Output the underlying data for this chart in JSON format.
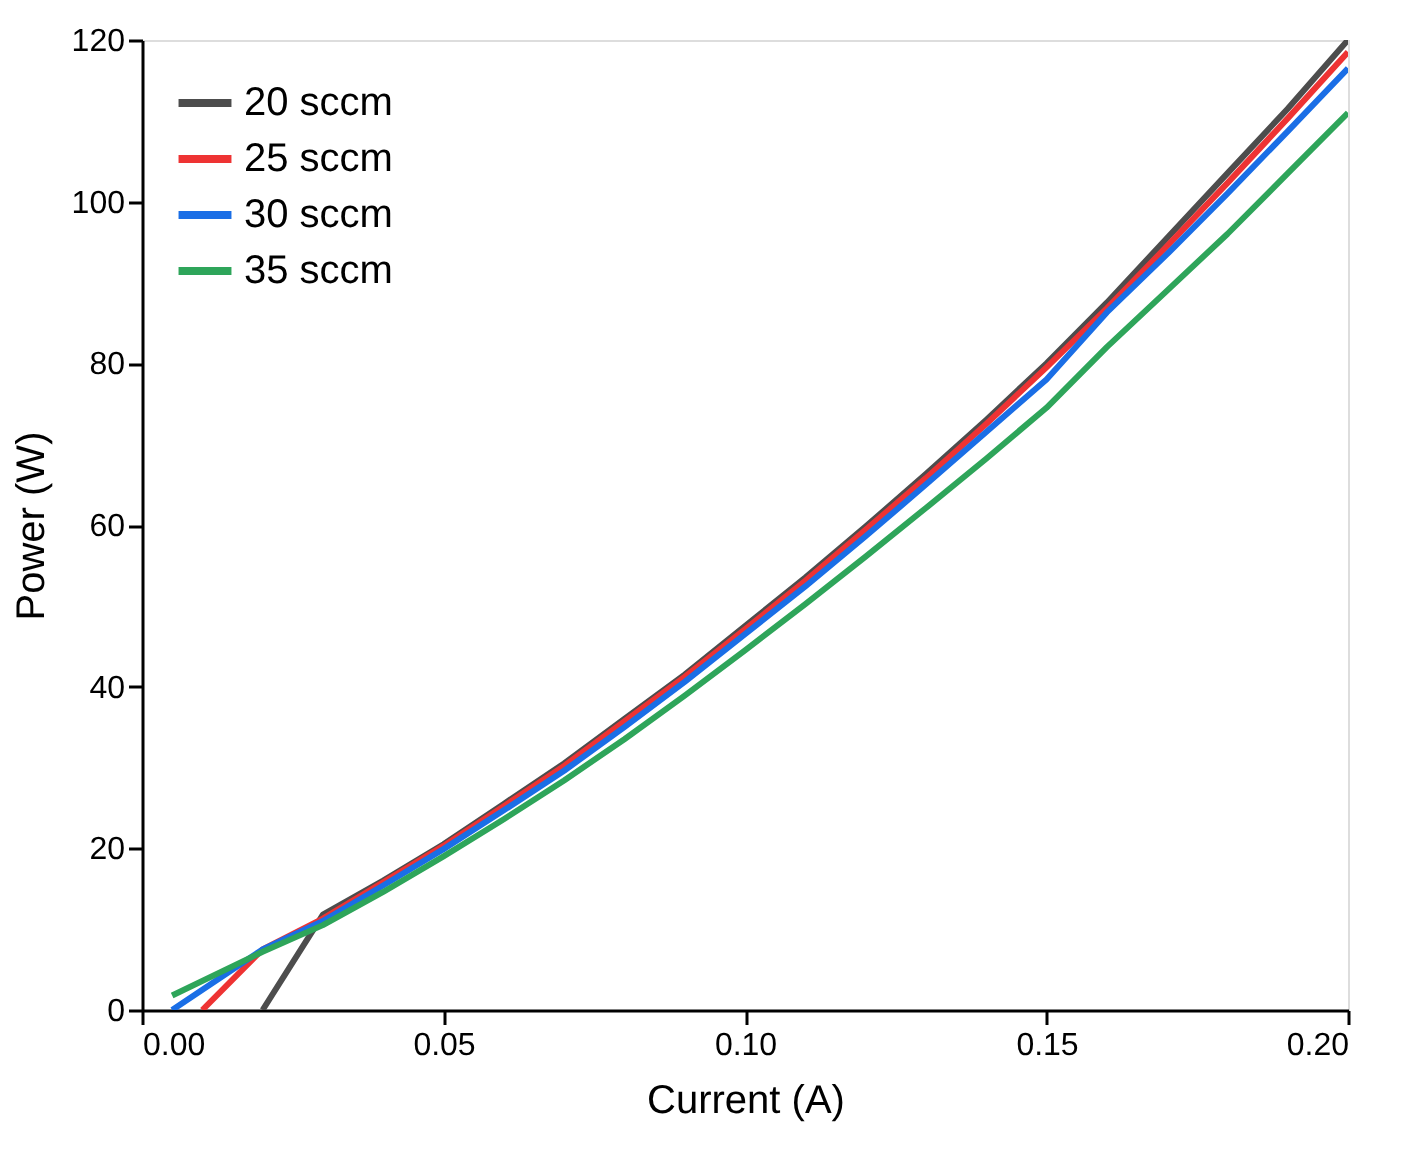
{
  "chart_data": {
    "type": "line",
    "xlabel": "Current (A)",
    "ylabel": "Power (W)",
    "xlim": [
      0.0,
      0.2
    ],
    "ylim": [
      0,
      120
    ],
    "xticks": [
      {
        "value": 0.0,
        "label": "0.00"
      },
      {
        "value": 0.05,
        "label": "0.05"
      },
      {
        "value": 0.1,
        "label": "0.10"
      },
      {
        "value": 0.15,
        "label": "0.15"
      },
      {
        "value": 0.2,
        "label": "0.20"
      }
    ],
    "yticks": [
      0,
      20,
      40,
      60,
      80,
      100,
      120
    ],
    "grid": false,
    "legend": "top left",
    "line_style": "solid",
    "marker": "none",
    "series": [
      {
        "name": "20 sccm",
        "color": "#4d4d4d",
        "x": [
          0.02,
          0.03,
          0.04,
          0.05,
          0.06,
          0.07,
          0.08,
          0.09,
          0.1,
          0.11,
          0.12,
          0.13,
          0.14,
          0.15,
          0.16,
          0.17,
          0.18,
          0.19,
          0.2
        ],
        "values": [
          0,
          11.8,
          16,
          20.5,
          25.5,
          30.5,
          36,
          41.5,
          47.5,
          53.5,
          59.8,
          66.3,
          73,
          80,
          87.5,
          95.5,
          103.5,
          111.5,
          120
        ]
      },
      {
        "name": "25 sccm",
        "color": "#ee3333",
        "x": [
          0.01,
          0.02,
          0.03,
          0.04,
          0.05,
          0.06,
          0.07,
          0.08,
          0.09,
          0.1,
          0.11,
          0.12,
          0.13,
          0.14,
          0.15,
          0.16,
          0.17,
          0.18,
          0.19,
          0.2
        ],
        "values": [
          0,
          7.5,
          11.3,
          15.8,
          20.3,
          25.2,
          30.2,
          35.7,
          41.2,
          47.1,
          53.1,
          59.4,
          65.8,
          72.5,
          79.5,
          86.8,
          94.5,
          102.3,
          110.3,
          118.5
        ]
      },
      {
        "name": "30 sccm",
        "color": "#1a6ee6",
        "x": [
          0.005,
          0.02,
          0.03,
          0.04,
          0.05,
          0.06,
          0.07,
          0.08,
          0.09,
          0.1,
          0.11,
          0.12,
          0.13,
          0.14,
          0.15,
          0.16,
          0.17,
          0.18,
          0.19,
          0.2
        ],
        "values": [
          0,
          7.5,
          11,
          15.4,
          19.9,
          24.7,
          29.6,
          35,
          40.6,
          46.5,
          52.4,
          58.6,
          65,
          71.5,
          78,
          86.3,
          93.5,
          101,
          108.7,
          116.5
        ]
      },
      {
        "name": "35 sccm",
        "color": "#2ea55a",
        "x": [
          0.005,
          0.02,
          0.03,
          0.04,
          0.05,
          0.06,
          0.07,
          0.08,
          0.09,
          0.1,
          0.11,
          0.12,
          0.13,
          0.14,
          0.15,
          0.16,
          0.17,
          0.18,
          0.19,
          0.2
        ],
        "values": [
          1.8,
          7.2,
          10.5,
          14.6,
          19,
          23.6,
          28.4,
          33.5,
          38.9,
          44.5,
          50.2,
          56.1,
          62.1,
          68.2,
          74.5,
          82,
          89,
          96,
          103.5,
          111
        ]
      }
    ]
  }
}
